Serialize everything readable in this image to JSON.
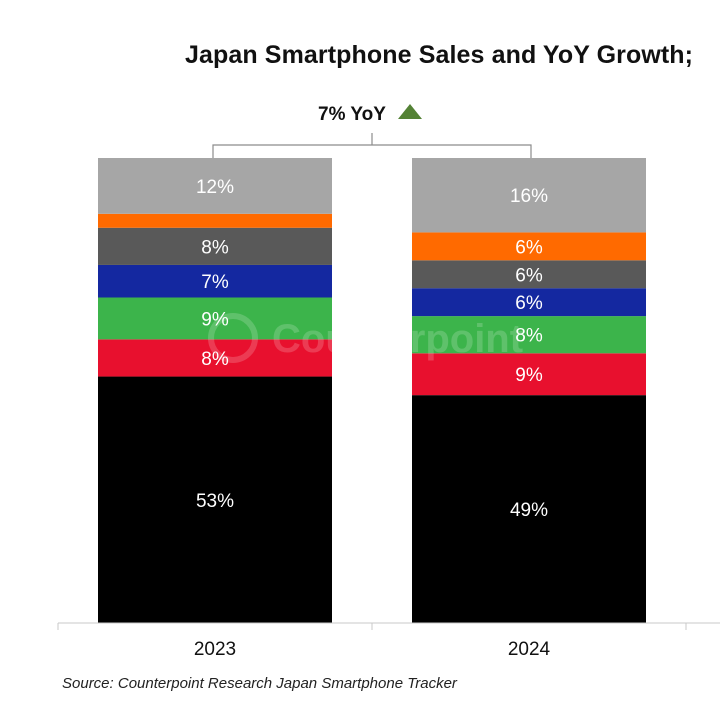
{
  "title": "Japan Smartphone Sales and YoY Growth;",
  "source": "Source: Counterpoint Research Japan Smartphone Tracker",
  "watermark": "Counterpoint",
  "colors": {
    "gray_light": "#a6a6a6",
    "orange": "#ff6a00",
    "gray_dark": "#595959",
    "blue": "#1428a0",
    "green": "#3cb44b",
    "red": "#e8102e",
    "black": "#000000",
    "yoy_up": "#548235"
  },
  "chart_data": {
    "type": "bar",
    "stacked": true,
    "normalized": true,
    "categories": [
      "2023",
      "2024"
    ],
    "series": [
      {
        "color_key": "black",
        "values": [
          53,
          49
        ],
        "labels": [
          "53%",
          "49%"
        ]
      },
      {
        "color_key": "red",
        "values": [
          8,
          9
        ],
        "labels": [
          "8%",
          "9%"
        ]
      },
      {
        "color_key": "green",
        "values": [
          9,
          8
        ],
        "labels": [
          "9%",
          "8%"
        ]
      },
      {
        "color_key": "blue",
        "values": [
          7,
          6
        ],
        "labels": [
          "7%",
          "6%"
        ]
      },
      {
        "color_key": "gray_dark",
        "values": [
          8,
          6
        ],
        "labels": [
          "8%",
          "6%"
        ]
      },
      {
        "color_key": "orange",
        "values": [
          3,
          6
        ],
        "labels": [
          "",
          "6%"
        ]
      },
      {
        "color_key": "gray_light",
        "values": [
          12,
          16
        ],
        "labels": [
          "12%",
          "16%"
        ]
      }
    ],
    "annotation": {
      "text": "7% YoY",
      "direction": "up",
      "between": [
        "2023",
        "2024"
      ]
    },
    "ylim": [
      0,
      100
    ],
    "grid": false,
    "legend": "none"
  }
}
